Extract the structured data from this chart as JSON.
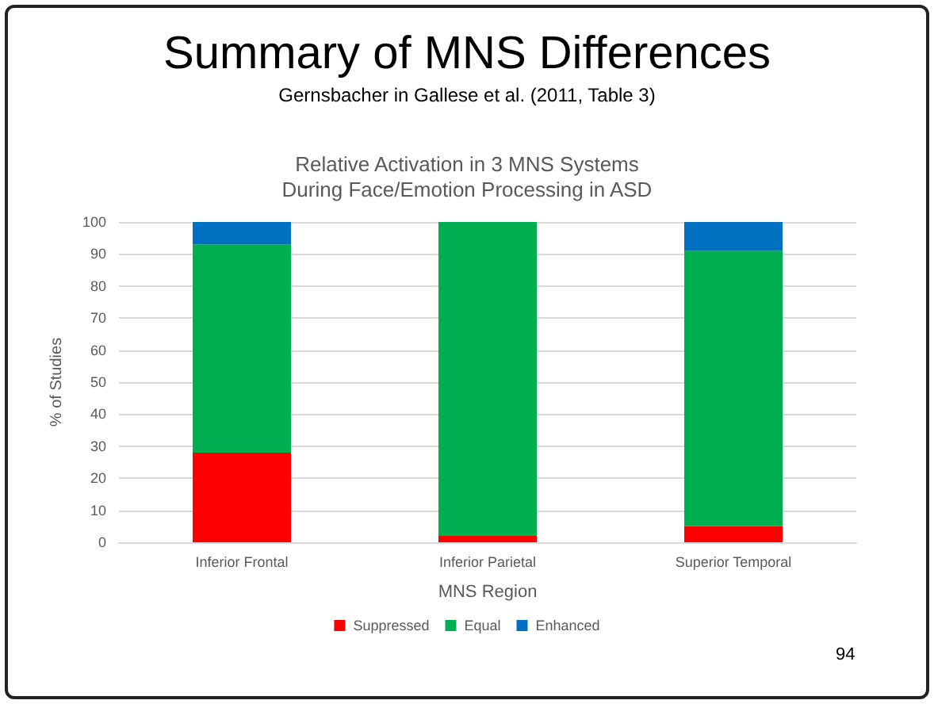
{
  "chart_data": {
    "type": "bar",
    "stacked": true,
    "title": "Summary of MNS Differences",
    "subtitle": "Gernsbacher in Gallese et al. (2011, Table 3)",
    "annotations": [
      "Relative Activation in 3 MNS Systems\nDuring Face/Emotion Processing in ASD",
      "94"
    ],
    "xlabel": "MNS Region",
    "ylabel": "% of Studies",
    "categories": [
      "Inferior Frontal",
      "Inferior Parietal",
      "Superior Temporal"
    ],
    "series": [
      {
        "name": "Suppressed",
        "color": "#ff0000",
        "values": [
          28,
          2,
          5
        ]
      },
      {
        "name": "Equal",
        "color": "#00b050",
        "values": [
          65,
          98,
          86
        ]
      },
      {
        "name": "Enhanced",
        "color": "#0070c0",
        "values": [
          7,
          0,
          9
        ]
      }
    ],
    "ylim": [
      0,
      100
    ],
    "yticks": [
      0,
      10,
      20,
      30,
      40,
      50,
      60,
      70,
      80,
      90,
      100
    ],
    "grid": "y",
    "legend": "bottom"
  }
}
